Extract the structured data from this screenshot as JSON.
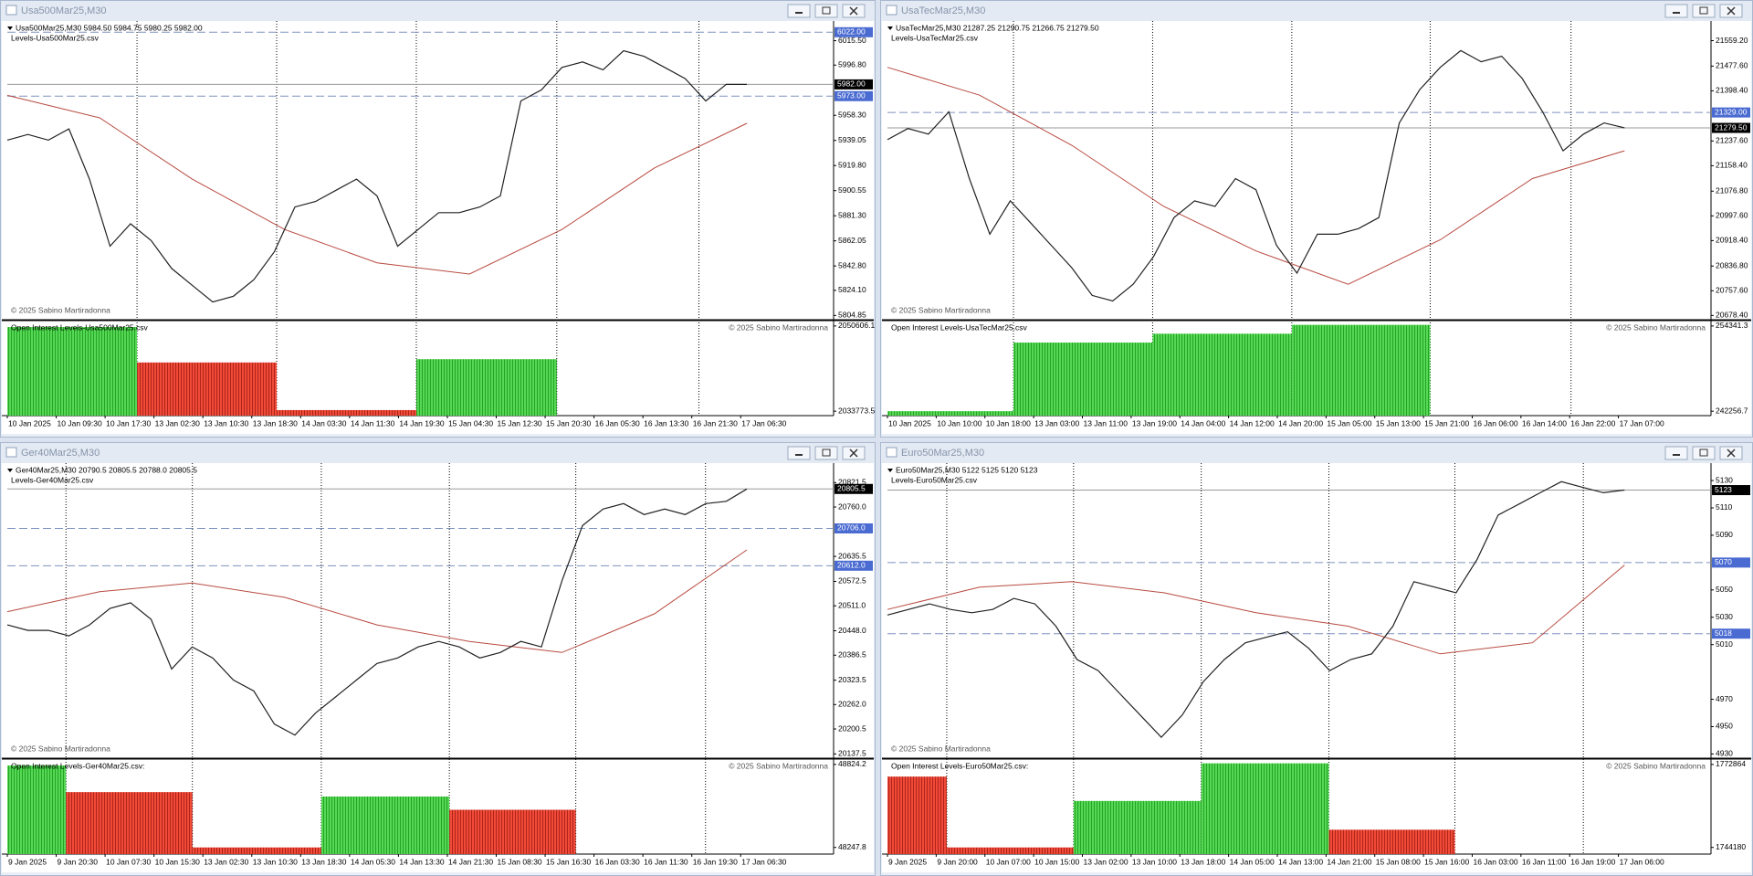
{
  "copyright": "© 2025 Sabino Martiradonna",
  "windows": [
    {
      "title": "Usa500Mar25,M30",
      "header": "Usa500Mar25,M30  5984.50 5984.75 5980.25 5982.00",
      "levels_file": "Levels-Usa500Mar25.csv",
      "price": {
        "ylim": [
          5802.3,
          6029.2
        ],
        "yticks": [
          {
            "value": 6015.5,
            "label": "6015.50"
          },
          {
            "value": 5996.8,
            "label": "5996.80"
          },
          {
            "value": 5958.3,
            "label": "5958.30"
          },
          {
            "value": 5939.05,
            "label": "5939.05"
          },
          {
            "value": 5919.8,
            "label": "5919.80"
          },
          {
            "value": 5900.55,
            "label": "5900.55"
          },
          {
            "value": 5881.3,
            "label": "5881.30"
          },
          {
            "value": 5862.05,
            "label": "5862.05"
          },
          {
            "value": 5842.8,
            "label": "5842.80"
          },
          {
            "value": 5824.1,
            "label": "5824.10"
          },
          {
            "value": 5804.85,
            "label": "5804.85"
          }
        ],
        "levels": [
          {
            "value": 6022,
            "label": "6022.00"
          },
          {
            "value": 5973,
            "label": "5973.00"
          }
        ],
        "current": {
          "value": 5982,
          "label": "5982.00"
        },
        "close": [
          5939.3,
          5943.6,
          5939.3,
          5947.9,
          5909.4,
          5858.0,
          5875.1,
          5862.3,
          5840.9,
          5828.0,
          5815.2,
          5819.5,
          5832.3,
          5853.7,
          5888.0,
          5892.2,
          5900.8,
          5909.4,
          5896.5,
          5858.0,
          5870.8,
          5883.7,
          5883.7,
          5888.0,
          5896.5,
          5969.3,
          5977.8,
          5995.0,
          5999.2,
          5993.2,
          6007.8,
          6003.5,
          5995.0,
          5986.4,
          5969.3,
          5982.1,
          5982.0
        ],
        "slow_ma": [
          5973.6,
          5956.4,
          5909.4,
          5870.8,
          5845.2,
          5836.6,
          5870.8,
          5917.9,
          5952.2
        ]
      },
      "oi": {
        "label": "Open Interest Levels-Usa500Mar25.csv",
        "ylim": [
          2032900,
          2051480
        ],
        "yticks": [
          2050606.1,
          2033773.5
        ],
        "values": [
          2050390,
          2043392,
          2033992,
          2044048
        ],
        "colors": [
          "#3fcf3f",
          "#e8382a",
          "#e8382a",
          "#3fcf3f"
        ]
      },
      "times": [
        "10 Jan 2025",
        "10 Jan 09:30",
        "10 Jan 17:30",
        "13 Jan 02:30",
        "13 Jan 10:30",
        "13 Jan 18:30",
        "14 Jan 03:30",
        "14 Jan 11:30",
        "14 Jan 19:30",
        "15 Jan 04:30",
        "15 Jan 12:30",
        "15 Jan 20:30",
        "16 Jan 05:30",
        "16 Jan 13:30",
        "16 Jan 21:30",
        "17 Jan 06:30"
      ]
    },
    {
      "title": "UsaTecMar25,M30",
      "header": "UsaTecMar25,M30  21287.25 21290.75 21266.75 21279.50",
      "levels_file": "Levels-UsaTecMar25.csv",
      "price": {
        "ylim": [
          20667.7,
          21616.3
        ],
        "yticks": [
          {
            "value": 21559.2,
            "label": "21559.20"
          },
          {
            "value": 21477.6,
            "label": "21477.60"
          },
          {
            "value": 21398.4,
            "label": "21398.40"
          },
          {
            "value": 21237.6,
            "label": "21237.60"
          },
          {
            "value": 21158.4,
            "label": "21158.40"
          },
          {
            "value": 21076.8,
            "label": "21076.80"
          },
          {
            "value": 20997.6,
            "label": "20997.60"
          },
          {
            "value": 20918.4,
            "label": "20918.40"
          },
          {
            "value": 20836.8,
            "label": "20836.80"
          },
          {
            "value": 20757.6,
            "label": "20757.60"
          },
          {
            "value": 20678.4,
            "label": "20678.40"
          }
        ],
        "levels": [
          {
            "value": 21329,
            "label": "21329.00"
          }
        ],
        "current": {
          "value": 21279.5,
          "label": "21279.50"
        },
        "close": [
          21241.9,
          21277.5,
          21259.7,
          21331.0,
          21117.1,
          20938.8,
          21045.7,
          20974.4,
          20903.1,
          20831.8,
          20742.6,
          20724.8,
          20778.3,
          20867.4,
          20992.2,
          21045.7,
          21027.9,
          21117.1,
          21081.4,
          20903.1,
          20814.0,
          20938.8,
          20938.8,
          20956.6,
          20992.2,
          21295.4,
          21402.3,
          21473.7,
          21527.2,
          21491.5,
          21509.3,
          21438.0,
          21331.0,
          21206.2,
          21259.7,
          21295.4,
          21279.5
        ],
        "slow_ma": [
          21473.7,
          21384.5,
          21224.0,
          21027.9,
          20885.3,
          20778.3,
          20920.9,
          21117.1,
          21206.2
        ]
      },
      "oi": {
        "label": "Open Interest Levels-UsaTecMar25.csv",
        "ylim": [
          241632,
          254969
        ],
        "yticks": [
          254341.3,
          242256.7
        ],
        "values": [
          242260,
          251988,
          253243,
          254498
        ],
        "colors": [
          "#3fcf3f",
          "#3fcf3f",
          "#3fcf3f",
          "#3fcf3f"
        ]
      },
      "times": [
        "10 Jan 2025",
        "10 Jan 10:00",
        "10 Jan 18:00",
        "13 Jan 03:00",
        "13 Jan 11:00",
        "13 Jan 19:00",
        "14 Jan 04:00",
        "14 Jan 12:00",
        "14 Jan 20:00",
        "15 Jan 05:00",
        "15 Jan 13:00",
        "15 Jan 21:00",
        "16 Jan 06:00",
        "16 Jan 14:00",
        "16 Jan 22:00",
        "17 Jan 07:00"
      ]
    },
    {
      "title": "Ger40Mar25,M30",
      "header": "Ger40Mar25,M30  20790.5 20805.5 20788.0 20805.5",
      "levels_file": "Levels-Ger40Mar25.csv",
      "price": {
        "ylim": [
          20129.2,
          20866
        ],
        "yticks": [
          20821.5,
          {
            "value": 20760,
            "label": "20760.0"
          },
          20635.5,
          20572.5,
          {
            "value": 20511,
            "label": "20511.0"
          },
          {
            "value": 20448,
            "label": "20448.0"
          },
          20386.5,
          20323.5,
          {
            "value": 20262,
            "label": "20262.0"
          },
          20200.5,
          20137.5
        ],
        "levels": [
          {
            "value": 20706,
            "label": "20706.0"
          },
          {
            "value": 20612,
            "label": "20612.0"
          }
        ],
        "current": 20805.5,
        "close": [
          20462.9,
          20449.0,
          20449.0,
          20435.1,
          20462.9,
          20504.6,
          20518.5,
          20476.8,
          20351.7,
          20407.3,
          20379.5,
          20323.9,
          20296.1,
          20212.7,
          20184.9,
          20240.5,
          20282.2,
          20323.9,
          20365.6,
          20379.5,
          20407.3,
          20421.2,
          20407.3,
          20379.5,
          20393.4,
          20421.2,
          20407.3,
          20574.1,
          20713.1,
          20754.8,
          20768.7,
          20740.9,
          20754.8,
          20740.9,
          20768.7,
          20774.3,
          20805.5
        ],
        "slow_ma": [
          20496.3,
          20546.3,
          20568.5,
          20532.4,
          20462.9,
          20421.2,
          20393.4,
          20490.7,
          20651.9
        ]
      },
      "oi": {
        "label": "Open Interest Levels-Ger40Mar25.csv:",
        "ylim": [
          48201.7,
          48855
        ],
        "yticks": [
          48824.2,
          48247.8
        ],
        "values": [
          48816.5,
          48632.1,
          48247.8,
          48601.4,
          48509.2
        ],
        "colors": [
          "#3fcf3f",
          "#e8382a",
          "#e8382a",
          "#3fcf3f",
          "#e8382a"
        ]
      },
      "times": [
        "9 Jan 2025",
        "9 Jan 20:30",
        "10 Jan 07:30",
        "10 Jan 15:30",
        "13 Jan 02:30",
        "13 Jan 10:30",
        "13 Jan 18:30",
        "14 Jan 05:30",
        "14 Jan 13:30",
        "14 Jan 21:30",
        "15 Jan 08:30",
        "15 Jan 16:30",
        "16 Jan 03:30",
        "16 Jan 11:30",
        "16 Jan 19:30",
        "17 Jan 06:30"
      ]
    },
    {
      "title": "Euro50Mar25,M30",
      "header": "Euro50Mar25,M30  5122 5125 5120 5123",
      "levels_file": "Levels-Euro50Mar25.csv",
      "price": {
        "ylim": [
          4927.6,
          5141.4
        ],
        "yticks": [
          5130,
          5110,
          5090,
          5050,
          5030,
          5010,
          4970,
          4950,
          4930
        ],
        "levels": [
          5070,
          5018
        ],
        "current": 5123,
        "close": [
          5031.6,
          5035.7,
          5039.8,
          5035.7,
          5033.3,
          5035.7,
          5043.8,
          5039.8,
          5023.5,
          4999.1,
          4991.0,
          4974.7,
          4958.5,
          4942.2,
          4958.5,
          4982.9,
          4999.1,
          5011.3,
          5015.4,
          5019.4,
          5007.3,
          4991.0,
          4999.1,
          5003.2,
          5023.5,
          5056.0,
          5052.0,
          5047.9,
          5072.3,
          5104.8,
          5112.9,
          5121.1,
          5129.2,
          5125.1,
          5121.1,
          5123
        ],
        "slow_ma": [
          5035.7,
          5052.0,
          5056.0,
          5047.9,
          5033.3,
          5023.5,
          5003.2,
          5011.3,
          5068.2
        ]
      },
      "oi": {
        "label": "Open Interest Levels-Euro50Mar25.csv:",
        "ylim": [
          1741885,
          1774394
        ],
        "yticks": [
          1772864,
          1744180
        ],
        "values": [
          1768657,
          1744180,
          1760242,
          1773247,
          1750300
        ],
        "colors": [
          "#e8382a",
          "#e8382a",
          "#3fcf3f",
          "#3fcf3f",
          "#e8382a"
        ]
      },
      "times": [
        "9 Jan 2025",
        "9 Jan 20:00",
        "10 Jan 07:00",
        "10 Jan 15:00",
        "13 Jan 02:00",
        "13 Jan 10:00",
        "13 Jan 18:00",
        "14 Jan 05:00",
        "14 Jan 13:00",
        "14 Jan 21:00",
        "15 Jan 08:00",
        "15 Jan 16:00",
        "16 Jan 03:00",
        "16 Jan 11:00",
        "16 Jan 19:00",
        "17 Jan 06:00"
      ]
    }
  ]
}
